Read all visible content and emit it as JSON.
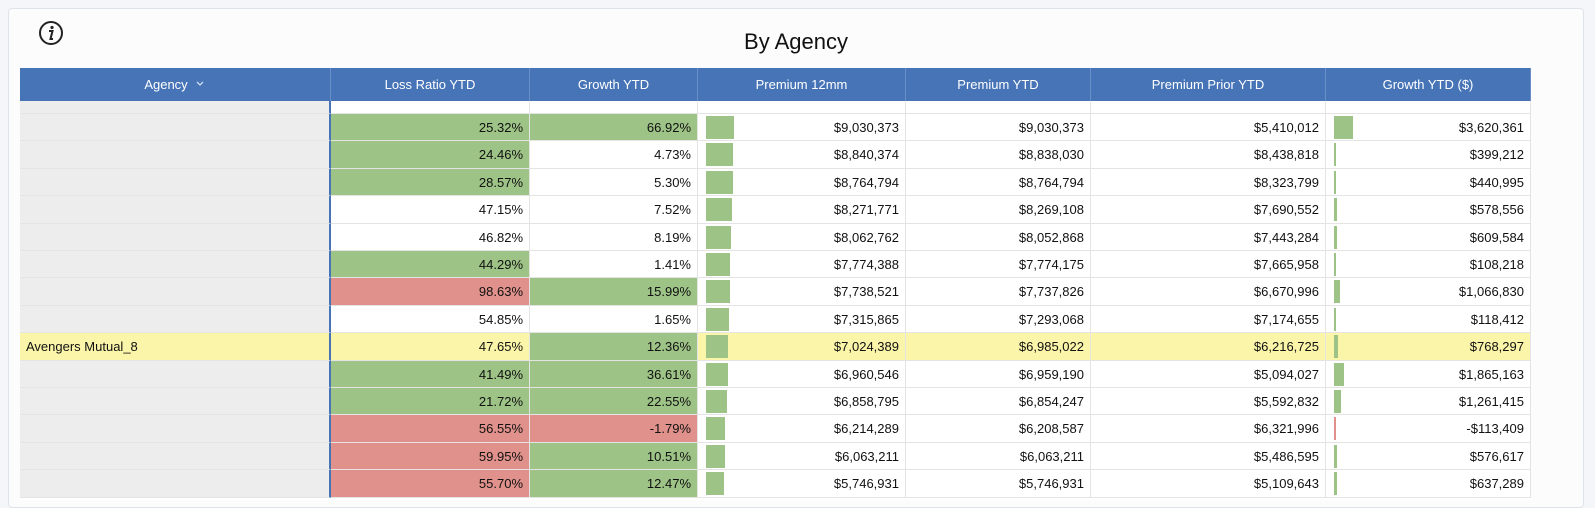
{
  "header": {
    "title": "By Agency"
  },
  "table": {
    "columns": [
      "Agency",
      "Loss Ratio YTD",
      "Growth YTD",
      "Premium 12mm",
      "Premium YTD",
      "Premium Prior YTD",
      "Growth YTD ($)"
    ],
    "bar_color": "#9dc386",
    "negative_bar_color": "#e0918b",
    "highlight_row": 8,
    "highlight_color": "#fbf5a9",
    "rows": [
      {
        "cells": [
          null,
          "25.32%",
          "66.92%",
          "$9,030,373",
          "$9,030,373",
          "$5,410,012",
          "$3,620,361"
        ],
        "fills": [
          "#9dc386",
          "#9dc386"
        ]
      },
      {
        "cells": [
          null,
          "24.46%",
          "4.73%",
          "$8,840,374",
          "$8,838,030",
          "$8,438,818",
          "$399,212"
        ],
        "fills": [
          "#9dc386",
          null
        ]
      },
      {
        "cells": [
          null,
          "28.57%",
          "5.30%",
          "$8,764,794",
          "$8,764,794",
          "$8,323,799",
          "$440,995"
        ],
        "fills": [
          "#9dc386",
          null
        ]
      },
      {
        "cells": [
          null,
          "47.15%",
          "7.52%",
          "$8,271,771",
          "$8,269,108",
          "$7,690,552",
          "$578,556"
        ],
        "fills": [
          null,
          null
        ]
      },
      {
        "cells": [
          null,
          "46.82%",
          "8.19%",
          "$8,062,762",
          "$8,052,868",
          "$7,443,284",
          "$609,584"
        ],
        "fills": [
          null,
          null
        ]
      },
      {
        "cells": [
          null,
          "44.29%",
          "1.41%",
          "$7,774,388",
          "$7,774,175",
          "$7,665,958",
          "$108,218"
        ],
        "fills": [
          "#9dc386",
          null
        ]
      },
      {
        "cells": [
          null,
          "98.63%",
          "15.99%",
          "$7,738,521",
          "$7,737,826",
          "$6,670,996",
          "$1,066,830"
        ],
        "fills": [
          "#e0918b",
          "#9dc386"
        ]
      },
      {
        "cells": [
          null,
          "54.85%",
          "1.65%",
          "$7,315,865",
          "$7,293,068",
          "$7,174,655",
          "$118,412"
        ],
        "fills": [
          null,
          null
        ]
      },
      {
        "cells": [
          "Avengers Mutual_8",
          "47.65%",
          "12.36%",
          "$7,024,389",
          "$6,985,022",
          "$6,216,725",
          "$768,297"
        ],
        "fills": [
          null,
          "#9dc386"
        ]
      },
      {
        "cells": [
          null,
          "41.49%",
          "36.61%",
          "$6,960,546",
          "$6,959,190",
          "$5,094,027",
          "$1,865,163"
        ],
        "fills": [
          "#9dc386",
          "#9dc386"
        ]
      },
      {
        "cells": [
          null,
          "21.72%",
          "22.55%",
          "$6,858,795",
          "$6,854,247",
          "$5,592,832",
          "$1,261,415"
        ],
        "fills": [
          "#9dc386",
          "#9dc386"
        ]
      },
      {
        "cells": [
          null,
          "56.55%",
          "-1.79%",
          "$6,214,289",
          "$6,208,587",
          "$6,321,996",
          "-$113,409"
        ],
        "fills": [
          "#e0918b",
          "#e0918b"
        ]
      },
      {
        "cells": [
          null,
          "59.95%",
          "10.51%",
          "$6,063,211",
          "$6,063,211",
          "$5,486,595",
          "$576,617"
        ],
        "fills": [
          "#e0918b",
          "#9dc386"
        ]
      },
      {
        "cells": [
          null,
          "55.70%",
          "12.47%",
          "$5,746,931",
          "$5,746,931",
          "$5,109,643",
          "$637,289"
        ],
        "fills": [
          "#e0918b",
          "#9dc386"
        ]
      }
    ]
  }
}
